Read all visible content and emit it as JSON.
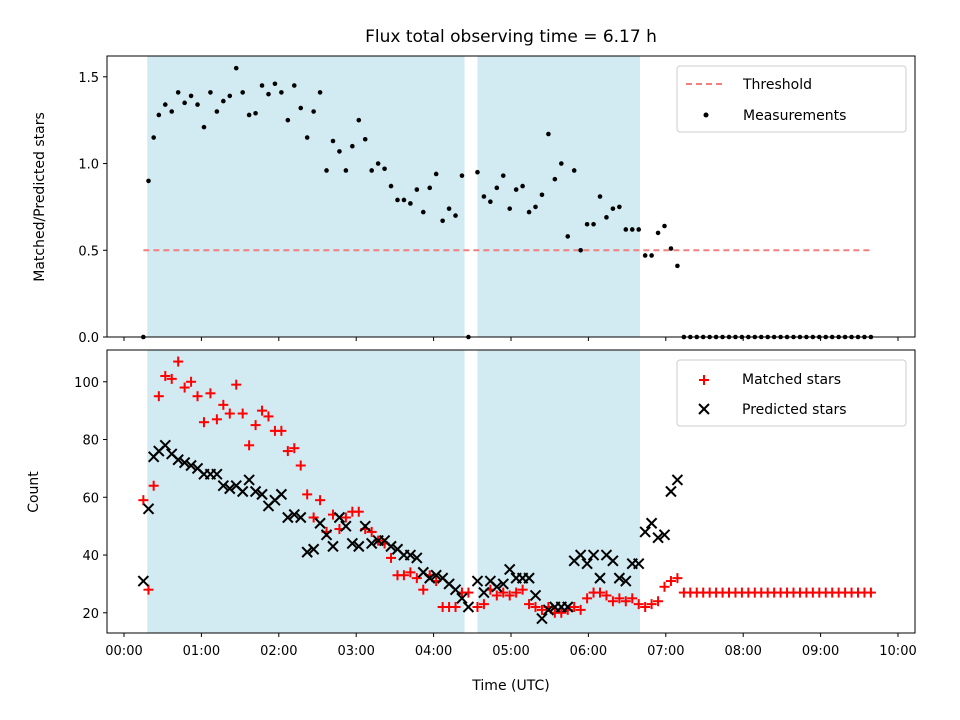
{
  "colors": {
    "shade": "#add8e6",
    "threshold": "#f08080",
    "matched": "#ff0000",
    "predicted": "#000000",
    "measurement": "#000000"
  },
  "chart_data": [
    {
      "type": "scatter",
      "title": "Flux total observing time = 6.17 h",
      "ylabel": "Matched/Predicted stars",
      "xlabel": "",
      "xlim": [
        "00:00",
        "10:00"
      ],
      "ylim": [
        0,
        1.62
      ],
      "yticks": [
        0.0,
        0.5,
        1.0,
        1.5
      ],
      "ytick_labels": [
        "0.0",
        "0.5",
        "1.0",
        "1.5"
      ],
      "shaded_intervals": [
        [
          "00:18",
          "04:24"
        ],
        [
          "04:34",
          "06:40"
        ]
      ],
      "legend_position": "upper right",
      "threshold": {
        "name": "Threshold",
        "x": [
          "00:15",
          "09:40"
        ],
        "y": 0.5
      },
      "series": [
        {
          "name": "Measurements",
          "x": [
            "00:15",
            "00:19",
            "00:23",
            "00:27",
            "00:32",
            "00:37",
            "00:42",
            "00:47",
            "00:52",
            "00:57",
            "01:02",
            "01:07",
            "01:12",
            "01:17",
            "01:22",
            "01:27",
            "01:32",
            "01:37",
            "01:42",
            "01:47",
            "01:52",
            "01:57",
            "02:02",
            "02:07",
            "02:12",
            "02:17",
            "02:22",
            "02:27",
            "02:32",
            "02:37",
            "02:42",
            "02:47",
            "02:52",
            "02:57",
            "03:02",
            "03:07",
            "03:12",
            "03:17",
            "03:22",
            "03:27",
            "03:32",
            "03:37",
            "03:42",
            "03:47",
            "03:52",
            "03:57",
            "04:02",
            "04:07",
            "04:12",
            "04:17",
            "04:22",
            "04:27",
            "04:34",
            "04:39",
            "04:44",
            "04:49",
            "04:54",
            "04:59",
            "05:04",
            "05:09",
            "05:14",
            "05:19",
            "05:24",
            "05:29",
            "05:34",
            "05:39",
            "05:44",
            "05:49",
            "05:54",
            "05:59",
            "06:04",
            "06:09",
            "06:14",
            "06:19",
            "06:24",
            "06:29",
            "06:34",
            "06:39",
            "06:44",
            "06:49",
            "06:54",
            "06:59",
            "07:04",
            "07:09",
            "07:14",
            "07:19",
            "07:24",
            "07:29",
            "07:34",
            "07:39",
            "07:44",
            "07:49",
            "07:54",
            "07:59",
            "08:04",
            "08:09",
            "08:14",
            "08:19",
            "08:24",
            "08:29",
            "08:34",
            "08:39",
            "08:44",
            "08:49",
            "08:54",
            "08:59",
            "09:04",
            "09:09",
            "09:14",
            "09:19",
            "09:24",
            "09:29",
            "09:34",
            "09:39"
          ],
          "y": [
            0.0,
            0.9,
            1.15,
            1.28,
            1.34,
            1.3,
            1.41,
            1.35,
            1.39,
            1.34,
            1.21,
            1.41,
            1.3,
            1.36,
            1.39,
            1.55,
            1.41,
            1.28,
            1.29,
            1.45,
            1.4,
            1.46,
            1.41,
            1.25,
            1.45,
            1.32,
            1.15,
            1.3,
            1.41,
            0.96,
            1.13,
            1.07,
            0.96,
            1.1,
            1.25,
            1.14,
            0.96,
            1.0,
            0.97,
            0.87,
            0.79,
            0.79,
            0.77,
            0.85,
            0.72,
            0.86,
            0.94,
            0.67,
            0.74,
            0.7,
            0.93,
            0.0,
            0.95,
            0.81,
            0.78,
            0.86,
            0.93,
            0.74,
            0.85,
            0.87,
            0.72,
            0.75,
            0.82,
            1.17,
            0.91,
            1.0,
            0.58,
            0.96,
            0.5,
            0.65,
            0.65,
            0.81,
            0.69,
            0.74,
            0.75,
            0.62,
            0.62,
            0.62,
            0.47,
            0.47,
            0.6,
            0.64,
            0.51,
            0.41,
            0.0,
            0.0,
            0.0,
            0.0,
            0.0,
            0.0,
            0.0,
            0.0,
            0.0,
            0.0,
            0.0,
            0.0,
            0.0,
            0.0,
            0.0,
            0.0,
            0.0,
            0.0,
            0.0,
            0.0,
            0.0,
            0.0,
            0.0,
            0.0,
            0.0,
            0.0,
            0.0,
            0.0,
            0.0,
            0.0
          ]
        }
      ]
    },
    {
      "type": "scatter",
      "title": "",
      "ylabel": "Count",
      "xlabel": "Time (UTC)",
      "xlim": [
        "00:00",
        "10:00"
      ],
      "ylim": [
        13,
        111
      ],
      "yticks": [
        20,
        40,
        60,
        80,
        100
      ],
      "xticks": [
        "00:00",
        "01:00",
        "02:00",
        "03:00",
        "04:00",
        "05:00",
        "06:00",
        "07:00",
        "08:00",
        "09:00",
        "10:00"
      ],
      "shaded_intervals": [
        [
          "00:18",
          "04:24"
        ],
        [
          "04:34",
          "06:40"
        ]
      ],
      "legend_position": "upper right",
      "series": [
        {
          "name": "Matched stars",
          "marker": "plus",
          "x": [
            "00:15",
            "00:19",
            "00:23",
            "00:27",
            "00:32",
            "00:37",
            "00:42",
            "00:47",
            "00:52",
            "00:57",
            "01:02",
            "01:07",
            "01:12",
            "01:17",
            "01:22",
            "01:27",
            "01:32",
            "01:37",
            "01:42",
            "01:47",
            "01:52",
            "01:57",
            "02:02",
            "02:07",
            "02:12",
            "02:17",
            "02:22",
            "02:27",
            "02:32",
            "02:37",
            "02:42",
            "02:47",
            "02:52",
            "02:57",
            "03:02",
            "03:07",
            "03:12",
            "03:17",
            "03:22",
            "03:27",
            "03:32",
            "03:37",
            "03:42",
            "03:47",
            "03:52",
            "03:57",
            "04:02",
            "04:07",
            "04:12",
            "04:17",
            "04:22",
            "04:27",
            "04:34",
            "04:39",
            "04:44",
            "04:49",
            "04:54",
            "04:59",
            "05:04",
            "05:09",
            "05:14",
            "05:19",
            "05:24",
            "05:29",
            "05:34",
            "05:39",
            "05:44",
            "05:49",
            "05:54",
            "05:59",
            "06:04",
            "06:09",
            "06:14",
            "06:19",
            "06:24",
            "06:29",
            "06:34",
            "06:39",
            "06:44",
            "06:49",
            "06:54",
            "06:59",
            "07:04",
            "07:09",
            "07:14",
            "07:19",
            "07:24",
            "07:29",
            "07:34",
            "07:39",
            "07:44",
            "07:49",
            "07:54",
            "07:59",
            "08:04",
            "08:09",
            "08:14",
            "08:19",
            "08:24",
            "08:29",
            "08:34",
            "08:39",
            "08:44",
            "08:49",
            "08:54",
            "08:59",
            "09:04",
            "09:09",
            "09:14",
            "09:19",
            "09:24",
            "09:29",
            "09:34",
            "09:39"
          ],
          "y": [
            59,
            28,
            64,
            95,
            102,
            101,
            107,
            98,
            100,
            95,
            86,
            96,
            87,
            92,
            89,
            99,
            89,
            78,
            85,
            90,
            88,
            83,
            83,
            76,
            77,
            71,
            61,
            53,
            59,
            48,
            54,
            49,
            53,
            55,
            55,
            49,
            48,
            45,
            44,
            39,
            33,
            33,
            34,
            32,
            28,
            33,
            31,
            22,
            22,
            22,
            27,
            27,
            22,
            23,
            28,
            26,
            27,
            26,
            27,
            28,
            23,
            22,
            21,
            22,
            20,
            20,
            21,
            22,
            21,
            25,
            27,
            27,
            26,
            24,
            25,
            24,
            25,
            23,
            22,
            23,
            24,
            29,
            31,
            32,
            27,
            27,
            27,
            27,
            27,
            27,
            27,
            27,
            27,
            27,
            27,
            27,
            27,
            27,
            27,
            27,
            27,
            27,
            27,
            27,
            27,
            27,
            27,
            27,
            27,
            27,
            27,
            27,
            27,
            27
          ]
        },
        {
          "name": "Predicted stars",
          "marker": "x",
          "x": [
            "00:15",
            "00:19",
            "00:23",
            "00:27",
            "00:32",
            "00:37",
            "00:42",
            "00:47",
            "00:52",
            "00:57",
            "01:02",
            "01:07",
            "01:12",
            "01:17",
            "01:22",
            "01:27",
            "01:32",
            "01:37",
            "01:42",
            "01:47",
            "01:52",
            "01:57",
            "02:02",
            "02:07",
            "02:12",
            "02:17",
            "02:22",
            "02:27",
            "02:32",
            "02:37",
            "02:42",
            "02:47",
            "02:52",
            "02:57",
            "03:02",
            "03:07",
            "03:12",
            "03:17",
            "03:22",
            "03:27",
            "03:32",
            "03:37",
            "03:42",
            "03:47",
            "03:52",
            "03:57",
            "04:02",
            "04:07",
            "04:12",
            "04:17",
            "04:22",
            "04:27",
            "04:34",
            "04:39",
            "04:44",
            "04:49",
            "04:54",
            "04:59",
            "05:04",
            "05:09",
            "05:14",
            "05:19",
            "05:24",
            "05:29",
            "05:34",
            "05:39",
            "05:44",
            "05:49",
            "05:54",
            "05:59",
            "06:04",
            "06:09",
            "06:14",
            "06:19",
            "06:24",
            "06:29",
            "06:34",
            "06:39",
            "06:44",
            "06:49",
            "06:54",
            "06:59",
            "07:04",
            "07:09"
          ],
          "y": [
            31,
            56,
            74,
            76,
            78,
            75,
            73,
            72,
            71,
            70,
            68,
            68,
            68,
            64,
            63,
            64,
            62,
            66,
            62,
            61,
            57,
            59,
            61,
            53,
            54,
            53,
            41,
            42,
            51,
            47,
            43,
            53,
            50,
            44,
            43,
            50,
            44,
            45,
            45,
            43,
            42,
            40,
            40,
            39,
            34,
            32,
            33,
            32,
            30,
            28,
            25,
            22,
            31,
            27,
            31,
            29,
            30,
            35,
            32,
            32,
            32,
            26,
            18,
            21,
            22,
            22,
            22,
            38,
            40,
            37,
            40,
            32,
            40,
            38,
            32,
            31,
            37,
            37,
            48,
            51,
            46,
            47,
            62,
            66
          ]
        }
      ]
    }
  ]
}
